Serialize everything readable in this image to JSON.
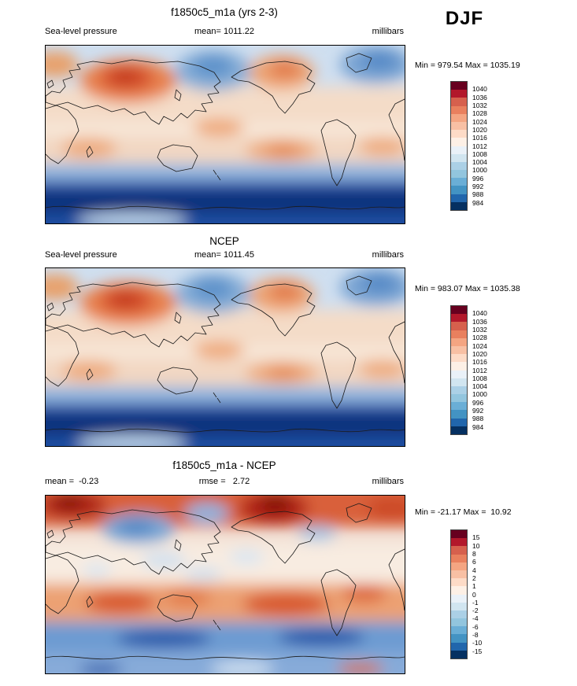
{
  "season": "DJF",
  "colorbar_colors": [
    "#67001f",
    "#b2182b",
    "#d6604d",
    "#e9805e",
    "#f4a582",
    "#f8c0a4",
    "#fddbc7",
    "#fdf0e6",
    "#eaf1f8",
    "#d1e5f0",
    "#abd0e6",
    "#92c5de",
    "#6aaed6",
    "#4393c3",
    "#2166ac",
    "#053061"
  ],
  "panels": [
    {
      "title": "f1850c5_m1a (yrs 2-3)",
      "label_left": "Sea-level pressure",
      "label_center": "mean= 1011.22",
      "label_right": "millibars",
      "minmax": "Min = 979.54 Max = 1035.19",
      "ticks": [
        "1040",
        "1036",
        "1032",
        "1028",
        "1024",
        "1020",
        "1016",
        "1012",
        "1008",
        "1004",
        "1000",
        "996",
        "992",
        "988",
        "984"
      ]
    },
    {
      "title": "NCEP",
      "label_left": "Sea-level pressure",
      "label_center": "mean= 1011.45",
      "label_right": "millibars",
      "minmax": "Min = 983.07 Max = 1035.38",
      "ticks": [
        "1040",
        "1036",
        "1032",
        "1028",
        "1024",
        "1020",
        "1016",
        "1012",
        "1008",
        "1004",
        "1000",
        "996",
        "992",
        "988",
        "984"
      ]
    },
    {
      "title": "f1850c5_m1a - NCEP",
      "label_left": "mean =  -0.23",
      "label_center": "rmse =   2.72",
      "label_right": "millibars",
      "minmax": "Min = -21.17 Max =  10.92",
      "ticks": [
        "15",
        "10",
        "8",
        "6",
        "4",
        "2",
        "1",
        "0",
        "-1",
        "-2",
        "-4",
        "-6",
        "-8",
        "-10",
        "-15"
      ]
    }
  ],
  "chart_data": [
    {
      "type": "heatmap",
      "title": "f1850c5_m1a (yrs 2-3)",
      "variable": "Sea-level pressure",
      "units": "millibars",
      "season": "DJF",
      "projection": "global latitude-longitude filled-contour map",
      "mean": 1011.22,
      "min": 979.54,
      "max": 1035.19,
      "contour_levels": [
        984,
        988,
        992,
        996,
        1000,
        1004,
        1008,
        1012,
        1016,
        1020,
        1024,
        1028,
        1032,
        1036,
        1040
      ],
      "colormap": "16-class blue (low pressure) to red (high pressure)",
      "legend_position": "right",
      "visible_features": [
        "strong high-pressure (red, >1032) over central Asia",
        "Aleutian low (blue) over North Pacific",
        "Icelandic low (blue) over North Atlantic",
        "subtropical high belts (~1020) in both hemispheres",
        "circumpolar Southern Ocean low belt (<988, dark blue)"
      ]
    },
    {
      "type": "heatmap",
      "title": "NCEP",
      "variable": "Sea-level pressure",
      "units": "millibars",
      "season": "DJF",
      "projection": "global latitude-longitude filled-contour map",
      "mean": 1011.45,
      "min": 983.07,
      "max": 1035.38,
      "contour_levels": [
        984,
        988,
        992,
        996,
        1000,
        1004,
        1008,
        1012,
        1016,
        1020,
        1024,
        1028,
        1032,
        1036,
        1040
      ],
      "colormap": "16-class blue (low pressure) to red (high pressure)",
      "legend_position": "right",
      "visible_features": [
        "Siberian high (red) over central Asia",
        "Aleutian low over North Pacific",
        "Icelandic low over North Atlantic",
        "subtropical highs",
        "Southern Ocean circumpolar low belt (dark blue)"
      ]
    },
    {
      "type": "heatmap",
      "title": "f1850c5_m1a - NCEP",
      "variable": "Sea-level pressure difference",
      "units": "millibars",
      "season": "DJF",
      "projection": "global latitude-longitude filled-contour map",
      "mean": -0.23,
      "rmse": 2.72,
      "min": -21.17,
      "max": 10.92,
      "contour_levels": [
        -15,
        -10,
        -8,
        -6,
        -4,
        -2,
        -1,
        0,
        1,
        2,
        4,
        6,
        8,
        10,
        15
      ],
      "colormap": "16-class blue (negative) to red (positive)",
      "legend_position": "right",
      "visible_features": [
        "positive bias (red) across Arctic with strong maxima near North Atlantic",
        "negative bias (blue) over central Asia and North Pacific",
        "positive bias band in subtropics/midlatitudes of Southern Hemisphere",
        "negative bias belt over Southern Ocean"
      ]
    }
  ]
}
